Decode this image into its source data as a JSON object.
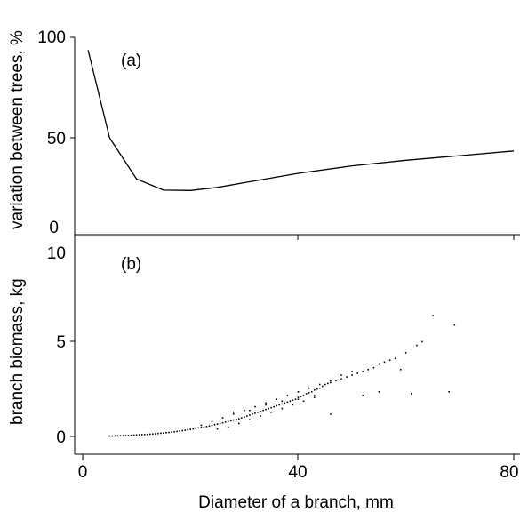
{
  "chart_data": [
    {
      "type": "line",
      "panel_label": "(a)",
      "title": "",
      "xlabel": "",
      "ylabel": "variation between trees, %",
      "xlim": [
        0,
        81
      ],
      "ylim": [
        0,
        100
      ],
      "x_ticks": [
        0,
        40,
        80
      ],
      "y_ticks": [
        0,
        50,
        100
      ],
      "grid": false,
      "series": [
        {
          "x": [
            1,
            5,
            10,
            15,
            20,
            25,
            30,
            40,
            50,
            60,
            70,
            80
          ],
          "y": [
            96,
            49,
            27,
            21,
            20.8,
            22.5,
            25,
            30,
            34,
            37,
            39.5,
            42
          ]
        }
      ]
    },
    {
      "type": "scatter",
      "panel_label": "(b)",
      "title": "",
      "xlabel": "Diameter of a branch, mm",
      "ylabel": "branch biomass, kg",
      "xlim": [
        0,
        81
      ],
      "ylim": [
        0,
        10
      ],
      "x_ticks": [
        0,
        40,
        80
      ],
      "x_tick_labels": [
        "0",
        "40",
        "80"
      ],
      "y_ticks": [
        0,
        5,
        10
      ],
      "grid": false,
      "points": {
        "x": [
          5,
          5.5,
          6,
          6.5,
          7,
          7.5,
          8,
          8.5,
          9,
          9.5,
          10,
          10.5,
          11,
          11.5,
          12,
          12.5,
          13,
          13.5,
          14,
          14.5,
          15,
          15.5,
          16,
          16.5,
          17,
          17.5,
          18,
          18.5,
          19,
          19.5,
          20,
          20.5,
          21,
          21.5,
          22,
          22.5,
          23,
          23.5,
          24,
          24.5,
          25,
          25.5,
          26,
          26.5,
          27,
          27.5,
          28,
          28.5,
          29,
          29.5,
          30,
          30.5,
          31,
          31.5,
          32,
          32.5,
          33,
          33.5,
          34,
          34.5,
          35,
          35.5,
          36,
          36.5,
          37,
          37.5,
          38,
          38.5,
          39,
          39.5,
          40,
          40.5,
          41,
          41.5,
          42,
          42.5,
          43,
          43.5,
          44,
          44.5,
          45,
          45.5,
          46,
          47,
          48,
          49,
          50,
          51,
          52,
          53,
          54,
          55,
          56,
          57,
          58,
          60,
          61,
          62,
          63,
          65,
          68,
          69,
          22,
          24,
          26,
          28,
          30,
          32,
          34,
          36,
          38,
          40,
          42,
          44,
          46,
          48,
          50,
          25,
          27,
          29,
          31,
          33,
          35,
          37,
          39,
          41,
          43,
          28,
          31,
          34,
          37,
          40,
          43,
          46,
          52,
          55,
          59
        ],
        "y": [
          0.02,
          0.02,
          0.03,
          0.03,
          0.04,
          0.04,
          0.05,
          0.05,
          0.06,
          0.07,
          0.08,
          0.09,
          0.1,
          0.1,
          0.11,
          0.12,
          0.13,
          0.14,
          0.16,
          0.17,
          0.18,
          0.2,
          0.21,
          0.23,
          0.25,
          0.27,
          0.29,
          0.31,
          0.33,
          0.35,
          0.38,
          0.4,
          0.43,
          0.46,
          0.48,
          0.5,
          0.53,
          0.56,
          0.6,
          0.63,
          0.66,
          0.7,
          0.73,
          0.77,
          0.8,
          0.84,
          0.88,
          0.92,
          0.95,
          1.0,
          1.05,
          1.1,
          1.15,
          1.2,
          1.25,
          1.3,
          1.35,
          1.4,
          1.45,
          1.5,
          1.55,
          1.6,
          1.65,
          1.7,
          1.75,
          1.8,
          1.85,
          1.9,
          1.95,
          2.0,
          2.1,
          2.15,
          2.2,
          2.3,
          2.35,
          2.4,
          2.5,
          2.55,
          2.6,
          2.7,
          2.8,
          2.85,
          2.9,
          3.0,
          3.1,
          3.2,
          3.3,
          3.4,
          3.5,
          3.6,
          3.7,
          3.9,
          4.0,
          4.1,
          4.2,
          4.5,
          2.3,
          4.9,
          5.1,
          6.5,
          2.4,
          6.0,
          0.6,
          0.8,
          1.0,
          1.2,
          1.4,
          1.6,
          1.8,
          2.0,
          2.2,
          2.4,
          2.6,
          2.8,
          3.0,
          3.3,
          3.5,
          0.4,
          0.5,
          0.7,
          0.9,
          1.1,
          1.3,
          1.5,
          1.7,
          1.9,
          2.1,
          1.3,
          1.4,
          1.7,
          1.9,
          2.0,
          2.2,
          1.2,
          2.2,
          2.4,
          3.6
        ]
      }
    }
  ]
}
